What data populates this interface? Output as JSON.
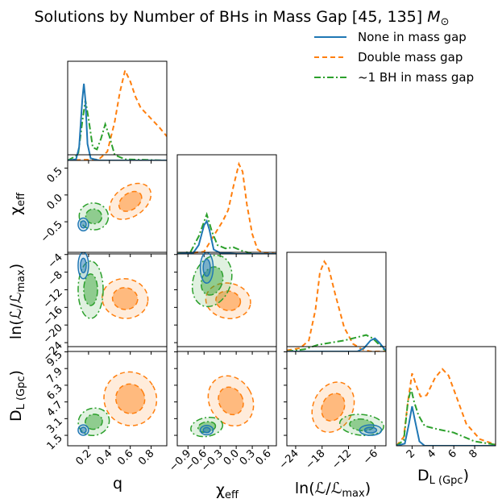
{
  "chart_data": {
    "type": "corner",
    "title": "Solutions by Number of BHs in Mass Gap [45, 135] M⊙",
    "colors": {
      "none": "#1f77b4",
      "double": "#ff7f0e",
      "one": "#2ca02c"
    },
    "legend": {
      "placement": "top-right",
      "entries": [
        {
          "key": "none",
          "label": "None in mass gap",
          "style": "solid"
        },
        {
          "key": "double",
          "label": "Double mass gap",
          "style": "dashed"
        },
        {
          "key": "one",
          "label": "~1 BH in mass gap",
          "style": "dashdot"
        }
      ]
    },
    "params": [
      {
        "key": "q",
        "xlabel": "q",
        "ylabel": "",
        "range": [
          0.0,
          0.95
        ],
        "ticks": [
          0.2,
          0.4,
          0.6,
          0.8
        ],
        "ticklabels": [
          "0.2",
          "0.4",
          "0.6",
          "0.8"
        ]
      },
      {
        "key": "chi",
        "xlabel": "χ_eff",
        "ylabel": "χ_eff",
        "range": [
          -1.1,
          0.75
        ],
        "ticks": [
          -0.9,
          -0.6,
          -0.3,
          0.0,
          0.3,
          0.6
        ],
        "ticklabels": [
          "−0.9",
          "−0.6",
          "−0.3",
          "0.0",
          "0.3",
          "0.6"
        ],
        "yticks": [
          -0.5,
          0.0,
          0.5
        ],
        "yticklabels": [
          "−0.5",
          "0.0",
          "0.5"
        ]
      },
      {
        "key": "lnL",
        "xlabel": "ln(ℒ/ℒ_max)",
        "ylabel": "ln(ℒ/ℒ_max)",
        "range": [
          -26,
          -3.5
        ],
        "ticks": [
          -24,
          -18,
          -12,
          -6
        ],
        "ticklabels": [
          "−24",
          "−18",
          "−12",
          "−6"
        ],
        "yticks": [
          -4,
          -8,
          -12,
          -16,
          -20,
          -24
        ],
        "yticklabels": [
          "−4",
          "−8",
          "−12",
          "−16",
          "−20",
          "−24"
        ]
      },
      {
        "key": "dl",
        "xlabel": "D_L (Gpc)",
        "ylabel": "D_L (Gpc)",
        "range": [
          0.5,
          10
        ],
        "ticks": [
          2,
          4,
          6,
          8
        ],
        "ticklabels": [
          "2",
          "4",
          "6",
          "8"
        ],
        "yticks": [
          1.5,
          3.1,
          4.7,
          6.3,
          7.9,
          9.5
        ],
        "yticklabels": [
          "1.5",
          "3.1",
          "4.7",
          "6.3",
          "7.9",
          "9.5"
        ]
      }
    ],
    "marginals": [
      {
        "param": "q",
        "series": {
          "none": [
            [
              0.0,
              0
            ],
            [
              0.08,
              0.01
            ],
            [
              0.11,
              0.12
            ],
            [
              0.14,
              0.55
            ],
            [
              0.155,
              0.7
            ],
            [
              0.17,
              0.55
            ],
            [
              0.19,
              0.15
            ],
            [
              0.22,
              0.02
            ],
            [
              0.3,
              0
            ],
            [
              0.95,
              0
            ]
          ],
          "double": [
            [
              0.0,
              0
            ],
            [
              0.3,
              0.01
            ],
            [
              0.38,
              0.08
            ],
            [
              0.45,
              0.35
            ],
            [
              0.5,
              0.62
            ],
            [
              0.55,
              0.82
            ],
            [
              0.6,
              0.72
            ],
            [
              0.65,
              0.58
            ],
            [
              0.7,
              0.48
            ],
            [
              0.8,
              0.38
            ],
            [
              0.88,
              0.3
            ],
            [
              0.95,
              0.22
            ]
          ],
          "one": [
            [
              0.0,
              0
            ],
            [
              0.1,
              0.05
            ],
            [
              0.14,
              0.35
            ],
            [
              0.17,
              0.55
            ],
            [
              0.2,
              0.38
            ],
            [
              0.24,
              0.12
            ],
            [
              0.28,
              0.1
            ],
            [
              0.32,
              0.2
            ],
            [
              0.36,
              0.33
            ],
            [
              0.4,
              0.22
            ],
            [
              0.45,
              0.05
            ],
            [
              0.55,
              0.01
            ],
            [
              0.95,
              0
            ]
          ]
        }
      },
      {
        "param": "chi",
        "series": {
          "none": [
            [
              -1.1,
              0
            ],
            [
              -0.8,
              0.01
            ],
            [
              -0.7,
              0.08
            ],
            [
              -0.6,
              0.26
            ],
            [
              -0.55,
              0.3
            ],
            [
              -0.5,
              0.22
            ],
            [
              -0.42,
              0.04
            ],
            [
              -0.3,
              0.01
            ],
            [
              0.0,
              0
            ],
            [
              0.75,
              0
            ]
          ],
          "double": [
            [
              -1.1,
              0
            ],
            [
              -0.6,
              0.02
            ],
            [
              -0.4,
              0.18
            ],
            [
              -0.25,
              0.3
            ],
            [
              -0.15,
              0.4
            ],
            [
              -0.05,
              0.62
            ],
            [
              0.05,
              0.82
            ],
            [
              0.12,
              0.75
            ],
            [
              0.2,
              0.45
            ],
            [
              0.3,
              0.18
            ],
            [
              0.4,
              0.04
            ],
            [
              0.5,
              0.01
            ],
            [
              0.75,
              0
            ]
          ],
          "one": [
            [
              -1.1,
              0
            ],
            [
              -0.85,
              0.02
            ],
            [
              -0.7,
              0.16
            ],
            [
              -0.55,
              0.36
            ],
            [
              -0.45,
              0.2
            ],
            [
              -0.35,
              0.08
            ],
            [
              -0.2,
              0.05
            ],
            [
              -0.05,
              0.06
            ],
            [
              0.1,
              0.03
            ],
            [
              0.3,
              0.0
            ],
            [
              0.75,
              0
            ]
          ]
        }
      },
      {
        "param": "lnL",
        "series": {
          "none": [
            [
              -26,
              0
            ],
            [
              -10,
              0
            ],
            [
              -8.5,
              0.03
            ],
            [
              -7,
              0.1
            ],
            [
              -6,
              0.12
            ],
            [
              -5,
              0.08
            ],
            [
              -4,
              0.03
            ],
            [
              -3.5,
              0.01
            ]
          ],
          "double": [
            [
              -26,
              0.01
            ],
            [
              -23,
              0.03
            ],
            [
              -21,
              0.1
            ],
            [
              -19.5,
              0.38
            ],
            [
              -18.5,
              0.72
            ],
            [
              -17.5,
              0.82
            ],
            [
              -16.5,
              0.76
            ],
            [
              -15,
              0.52
            ],
            [
              -13,
              0.22
            ],
            [
              -11,
              0.07
            ],
            [
              -9,
              0.02
            ],
            [
              -7,
              0.0
            ],
            [
              -3.5,
              0
            ]
          ],
          "one": [
            [
              -26,
              0
            ],
            [
              -22,
              0.02
            ],
            [
              -19,
              0.06
            ],
            [
              -16,
              0.08
            ],
            [
              -13,
              0.1
            ],
            [
              -10,
              0.13
            ],
            [
              -8,
              0.15
            ],
            [
              -6.5,
              0.12
            ],
            [
              -5,
              0.06
            ],
            [
              -4,
              0.02
            ],
            [
              -3.5,
              0.01
            ]
          ]
        }
      },
      {
        "param": "dl",
        "series": {
          "none": [
            [
              0.5,
              0
            ],
            [
              1.3,
              0.02
            ],
            [
              1.7,
              0.2
            ],
            [
              2.0,
              0.36
            ],
            [
              2.3,
              0.22
            ],
            [
              2.7,
              0.04
            ],
            [
              3.2,
              0.0
            ],
            [
              10,
              0
            ]
          ],
          "double": [
            [
              0.5,
              0
            ],
            [
              1.2,
              0.08
            ],
            [
              1.6,
              0.4
            ],
            [
              2.0,
              0.66
            ],
            [
              2.4,
              0.55
            ],
            [
              2.8,
              0.45
            ],
            [
              3.4,
              0.46
            ],
            [
              4.2,
              0.62
            ],
            [
              4.9,
              0.7
            ],
            [
              5.5,
              0.64
            ],
            [
              6.2,
              0.46
            ],
            [
              7.2,
              0.2
            ],
            [
              8.5,
              0.06
            ],
            [
              10,
              0.01
            ]
          ],
          "one": [
            [
              0.5,
              0
            ],
            [
              1.2,
              0.05
            ],
            [
              1.6,
              0.4
            ],
            [
              1.9,
              0.52
            ],
            [
              2.2,
              0.4
            ],
            [
              2.6,
              0.28
            ],
            [
              3.2,
              0.18
            ],
            [
              4.5,
              0.15
            ],
            [
              6,
              0.12
            ],
            [
              8,
              0.04
            ],
            [
              10,
              0.01
            ]
          ]
        }
      }
    ],
    "contours_2d": [
      {
        "row": 1,
        "col": 0,
        "blobs": [
          {
            "key": "double",
            "cx": 0.6,
            "cy": -0.12,
            "rx": 0.22,
            "ry": 0.28,
            "rot": -35
          },
          {
            "key": "one",
            "cx": 0.25,
            "cy": -0.4,
            "rx": 0.14,
            "ry": 0.25,
            "rot": 10
          },
          {
            "key": "none",
            "cx": 0.15,
            "cy": -0.55,
            "rx": 0.05,
            "ry": 0.12,
            "rot": 0
          }
        ]
      },
      {
        "row": 2,
        "col": 0,
        "blobs": [
          {
            "key": "double",
            "cx": 0.55,
            "cy": -14,
            "rx": 0.22,
            "ry": 4.5,
            "rot": 8
          },
          {
            "key": "one",
            "cx": 0.22,
            "cy": -12,
            "rx": 0.12,
            "ry": 6.5,
            "rot": 0
          },
          {
            "key": "none",
            "cx": 0.15,
            "cy": -6.5,
            "rx": 0.05,
            "ry": 3.0,
            "rot": 0
          }
        ]
      },
      {
        "row": 2,
        "col": 1,
        "blobs": [
          {
            "key": "double",
            "cx": -0.15,
            "cy": -14.5,
            "rx": 0.42,
            "ry": 4.0,
            "rot": 10
          },
          {
            "key": "one",
            "cx": -0.45,
            "cy": -10,
            "rx": 0.35,
            "ry": 6.0,
            "rot": 20
          },
          {
            "key": "none",
            "cx": -0.55,
            "cy": -7,
            "rx": 0.12,
            "ry": 3.5,
            "rot": 0
          }
        ]
      },
      {
        "row": 3,
        "col": 0,
        "blobs": [
          {
            "key": "double",
            "cx": 0.6,
            "cy": 5.0,
            "rx": 0.25,
            "ry": 2.6,
            "rot": -30
          },
          {
            "key": "one",
            "cx": 0.25,
            "cy": 2.8,
            "rx": 0.15,
            "ry": 1.3,
            "rot": -15
          },
          {
            "key": "none",
            "cx": 0.15,
            "cy": 2.0,
            "rx": 0.05,
            "ry": 0.5,
            "rot": 0
          }
        ]
      },
      {
        "row": 3,
        "col": 1,
        "blobs": [
          {
            "key": "double",
            "cx": -0.1,
            "cy": 4.8,
            "rx": 0.4,
            "ry": 2.5,
            "rot": -30
          },
          {
            "key": "one",
            "cx": -0.55,
            "cy": 2.3,
            "rx": 0.3,
            "ry": 0.9,
            "rot": -10
          },
          {
            "key": "none",
            "cx": -0.55,
            "cy": 2.0,
            "rx": 0.12,
            "ry": 0.45,
            "rot": 0
          }
        ]
      },
      {
        "row": 3,
        "col": 2,
        "blobs": [
          {
            "key": "double",
            "cx": -15.5,
            "cy": 4.2,
            "rx": 4.5,
            "ry": 2.5,
            "rot": 25
          },
          {
            "key": "one",
            "cx": -9,
            "cy": 2.5,
            "rx": 5.0,
            "ry": 1.0,
            "rot": 5
          },
          {
            "key": "none",
            "cx": -7,
            "cy": 2.0,
            "rx": 2.5,
            "ry": 0.5,
            "rot": 0
          }
        ]
      }
    ]
  }
}
